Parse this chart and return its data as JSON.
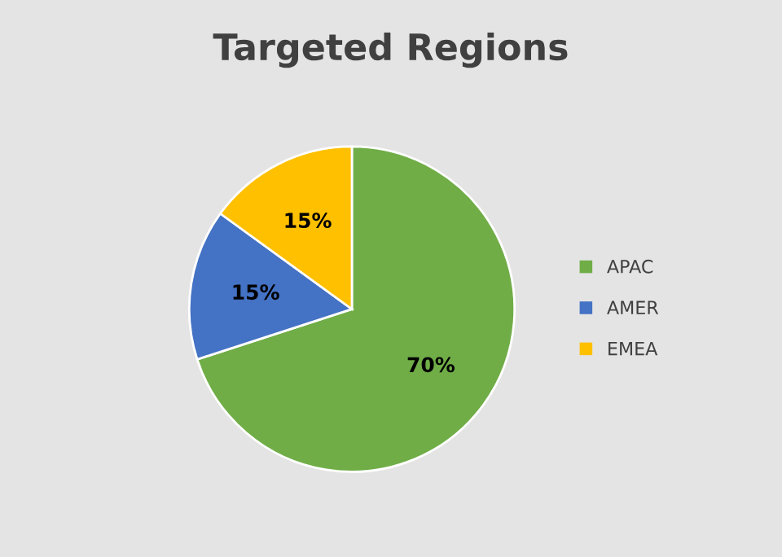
{
  "chart_data": {
    "type": "pie",
    "title": "Targeted Regions",
    "categories": [
      "APAC",
      "AMER",
      "EMEA"
    ],
    "values": [
      70,
      15,
      15
    ],
    "colors": [
      "#70ad47",
      "#4472c4",
      "#ffc000"
    ],
    "value_labels": [
      "70%",
      "15%",
      "15%"
    ],
    "legend": "right"
  }
}
